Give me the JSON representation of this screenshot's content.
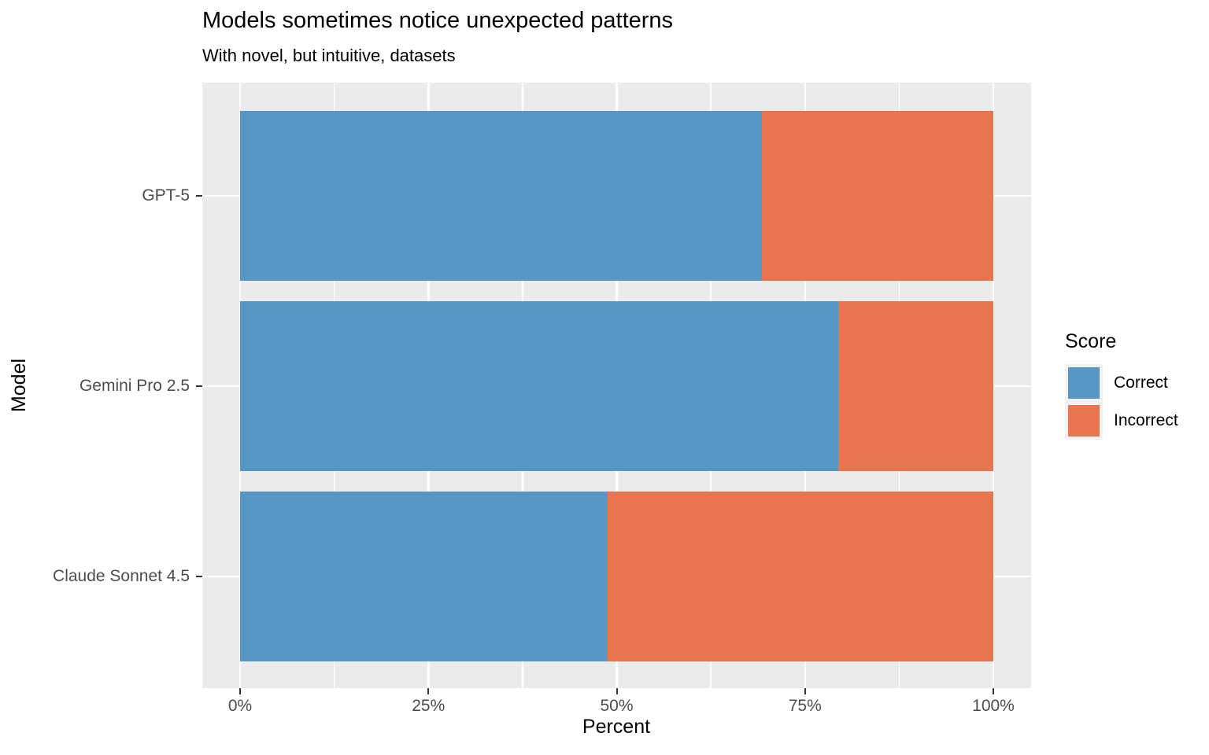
{
  "chart_data": {
    "type": "bar",
    "orientation": "horizontal",
    "stacked": true,
    "title": "Models sometimes notice unexpected patterns",
    "subtitle": "With novel, but intuitive, datasets",
    "xlabel": "Percent",
    "ylabel": "Model",
    "categories": [
      "GPT-5",
      "Gemini Pro 2.5",
      "Claude Sonnet 4.5"
    ],
    "series": [
      {
        "name": "Correct",
        "color": "#5697C4",
        "values": [
          69.3,
          79.4,
          48.8
        ]
      },
      {
        "name": "Incorrect",
        "color": "#E7754E",
        "values": [
          30.7,
          20.6,
          51.2
        ]
      }
    ],
    "x_ticks": [
      {
        "value": 0,
        "label": "0%"
      },
      {
        "value": 25,
        "label": "25%"
      },
      {
        "value": 50,
        "label": "50%"
      },
      {
        "value": 75,
        "label": "75%"
      },
      {
        "value": 100,
        "label": "100%"
      }
    ],
    "x_minor_ticks": [
      12.5,
      37.5,
      62.5,
      87.5
    ],
    "xlim": [
      0,
      100
    ],
    "legend": {
      "title": "Score",
      "position": "right"
    },
    "grid": true,
    "panel_background": "#EBEBEB",
    "gridline_color": "#FFFFFF"
  }
}
